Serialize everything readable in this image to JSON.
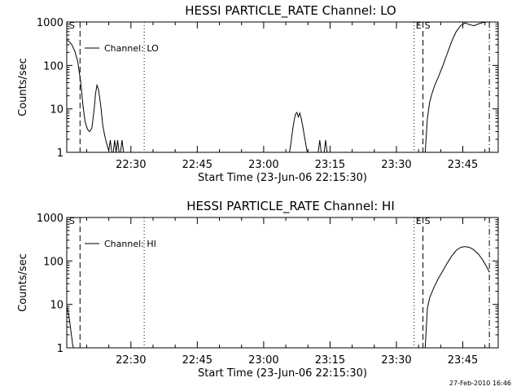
{
  "footer": {
    "timestamp": "27-Feb-2010 16:46"
  },
  "chart_data": [
    {
      "type": "line",
      "title": "HESSI PARTICLE_RATE Channel: LO",
      "xlabel": "Start Time (23-Jun-06 22:15:30)",
      "ylabel": "Counts/sec",
      "yscale": "log",
      "ylim": [
        1,
        1000
      ],
      "xlim": [
        "22:15:30",
        "23:53:00"
      ],
      "x_ticks": [
        "22:30",
        "22:45",
        "23:00",
        "23:15",
        "23:30",
        "23:45"
      ],
      "y_ticks": [
        "1",
        "10",
        "100",
        "1000"
      ],
      "legend": {
        "label": "Channel: LO",
        "placement": "top-left"
      },
      "markers": [
        {
          "label": "S",
          "time": "22:15:40",
          "style": ""
        },
        {
          "label": "",
          "time": "22:18:30",
          "style": "dashed"
        },
        {
          "label": "",
          "time": "22:33:00",
          "style": "dotted"
        },
        {
          "label": "E",
          "time": "23:34:00",
          "style": "dotted"
        },
        {
          "label": "S",
          "time": "23:36:00",
          "style": "dashed"
        },
        {
          "label": "",
          "time": "23:51:00",
          "style": "dash-dot"
        }
      ],
      "series": [
        {
          "segments": [
            [
              [
                "22:15:30",
                380
              ],
              [
                "22:16:00",
                360
              ],
              [
                "22:16:40",
                300
              ],
              [
                "22:17:20",
                210
              ],
              [
                "22:18:00",
                120
              ],
              [
                "22:18:40",
                40
              ],
              [
                "22:19:10",
                12
              ],
              [
                "22:19:40",
                5
              ],
              [
                "22:20:10",
                3.4
              ],
              [
                "22:20:40",
                3
              ],
              [
                "22:21:10",
                3.6
              ],
              [
                "22:21:40",
                9
              ],
              [
                "22:22:00",
                22
              ],
              [
                "22:22:20",
                35
              ],
              [
                "22:22:40",
                28
              ],
              [
                "22:23:10",
                12
              ],
              [
                "22:23:40",
                4
              ],
              [
                "22:24:10",
                2.2
              ],
              [
                "22:24:40",
                1.4
              ],
              [
                "22:25:00",
                1.1
              ],
              [
                "22:25:20",
                1.9
              ],
              [
                "22:25:40",
                1
              ],
              [
                "22:26:00",
                1
              ],
              [
                "22:26:20",
                1.9
              ],
              [
                "22:26:40",
                1
              ],
              [
                "22:27:00",
                1.9
              ],
              [
                "22:27:20",
                1
              ],
              [
                "22:27:40",
                1
              ],
              [
                "22:28:00",
                1.9
              ],
              [
                "22:28:20",
                1
              ],
              [
                "22:28:40",
                1
              ]
            ],
            [
              [
                "23:05:50",
                1
              ],
              [
                "23:06:10",
                1.6
              ],
              [
                "23:06:30",
                3
              ],
              [
                "23:06:50",
                5
              ],
              [
                "23:07:10",
                7.5
              ],
              [
                "23:07:30",
                8.3
              ],
              [
                "23:07:50",
                6.5
              ],
              [
                "23:08:10",
                8
              ],
              [
                "23:08:30",
                6
              ],
              [
                "23:08:50",
                4
              ],
              [
                "23:09:10",
                2.5
              ],
              [
                "23:09:30",
                1.6
              ],
              [
                "23:09:50",
                1
              ]
            ],
            [
              [
                "23:12:20",
                1
              ],
              [
                "23:12:40",
                1.9
              ],
              [
                "23:13:00",
                1
              ]
            ],
            [
              [
                "23:13:40",
                1
              ],
              [
                "23:14:00",
                1.9
              ],
              [
                "23:14:20",
                1
              ]
            ],
            [
              [
                "23:36:30",
                1
              ],
              [
                "23:37:00",
                6
              ],
              [
                "23:37:30",
                14
              ],
              [
                "23:38:00",
                22
              ],
              [
                "23:38:40",
                35
              ],
              [
                "23:39:30",
                55
              ],
              [
                "23:40:30",
                100
              ],
              [
                "23:41:30",
                190
              ],
              [
                "23:42:30",
                360
              ],
              [
                "23:43:30",
                600
              ],
              [
                "23:44:30",
                820
              ],
              [
                "23:45:30",
                950
              ],
              [
                "23:46:30",
                870
              ],
              [
                "23:47:30",
                820
              ],
              [
                "23:48:30",
                900
              ],
              [
                "23:49:30",
                970
              ],
              [
                "23:50:30",
                1000
              ],
              [
                "23:51:00",
                1000
              ],
              [
                "23:53:00",
                1000
              ]
            ]
          ]
        }
      ]
    },
    {
      "type": "line",
      "title": "HESSI PARTICLE_RATE Channel: HI",
      "xlabel": "Start Time (23-Jun-06 22:15:30)",
      "ylabel": "Counts/sec",
      "yscale": "log",
      "ylim": [
        1,
        1000
      ],
      "xlim": [
        "22:15:30",
        "23:53:00"
      ],
      "x_ticks": [
        "22:30",
        "22:45",
        "23:00",
        "23:15",
        "23:30",
        "23:45"
      ],
      "y_ticks": [
        "1",
        "10",
        "100",
        "1000"
      ],
      "legend": {
        "label": "Channel: HI",
        "placement": "top-left"
      },
      "markers": [
        {
          "label": "S",
          "time": "22:15:40",
          "style": ""
        },
        {
          "label": "",
          "time": "22:18:30",
          "style": "dashed"
        },
        {
          "label": "",
          "time": "22:33:00",
          "style": "dotted"
        },
        {
          "label": "E",
          "time": "23:34:00",
          "style": "dotted"
        },
        {
          "label": "S",
          "time": "23:36:00",
          "style": "dashed"
        },
        {
          "label": "",
          "time": "23:51:00",
          "style": "dash-dot"
        }
      ],
      "series": [
        {
          "segments": [
            [
              [
                "22:15:30",
                9
              ],
              [
                "22:15:50",
                6.5
              ],
              [
                "22:16:10",
                4
              ],
              [
                "22:16:30",
                2.2
              ],
              [
                "22:16:50",
                1.2
              ],
              [
                "22:17:00",
                1
              ]
            ],
            [
              [
                "23:36:30",
                1
              ],
              [
                "23:37:00",
                8
              ],
              [
                "23:37:30",
                14
              ],
              [
                "23:38:30",
                25
              ],
              [
                "23:39:30",
                40
              ],
              [
                "23:40:30",
                60
              ],
              [
                "23:41:30",
                90
              ],
              [
                "23:42:30",
                130
              ],
              [
                "23:43:30",
                175
              ],
              [
                "23:44:30",
                205
              ],
              [
                "23:45:30",
                215
              ],
              [
                "23:46:30",
                205
              ],
              [
                "23:47:30",
                180
              ],
              [
                "23:48:30",
                145
              ],
              [
                "23:49:30",
                105
              ],
              [
                "23:50:30",
                70
              ],
              [
                "23:51:00",
                55
              ]
            ]
          ]
        }
      ]
    }
  ]
}
